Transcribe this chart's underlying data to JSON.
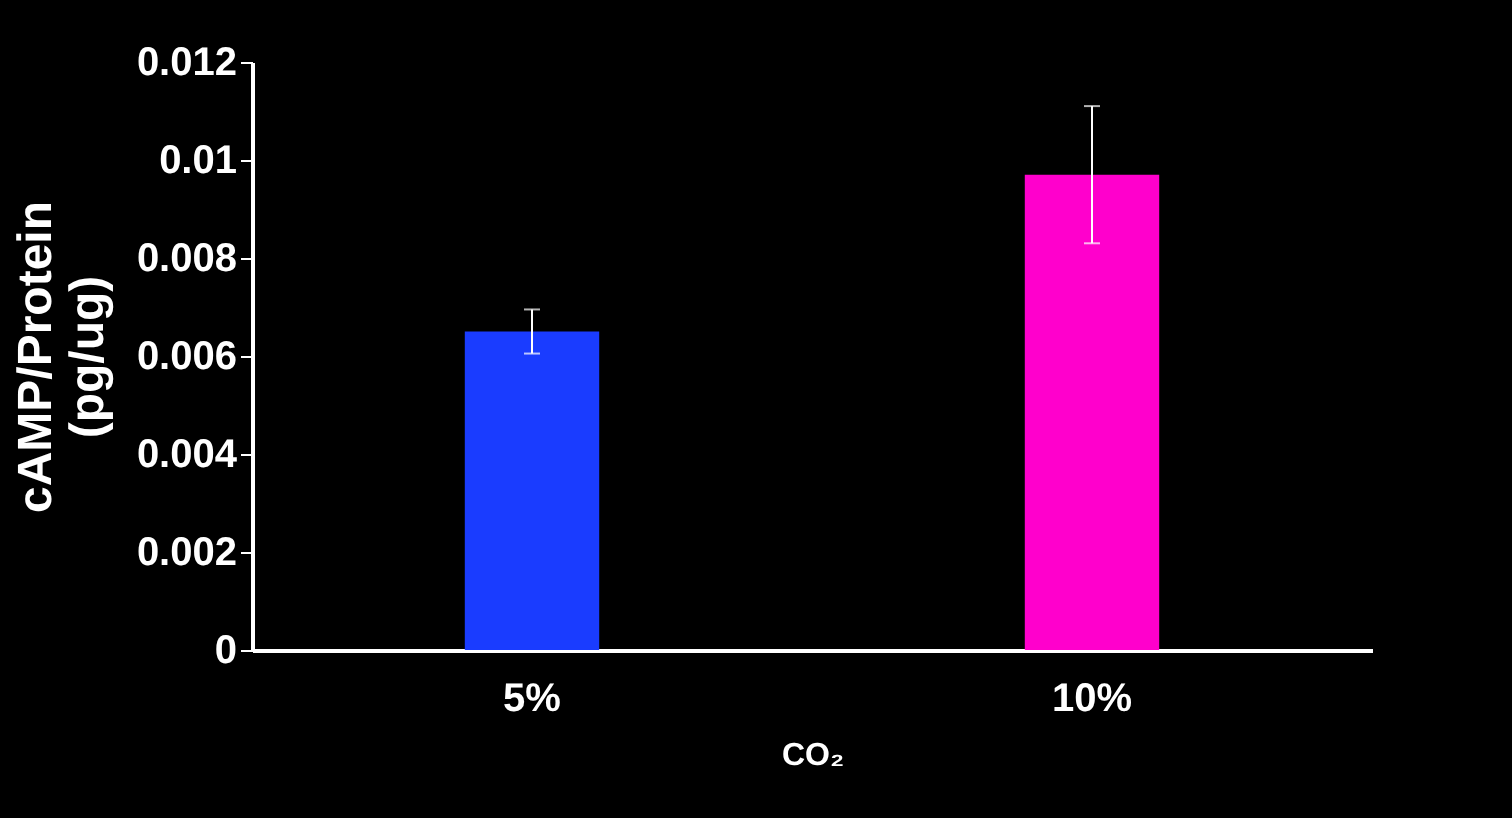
{
  "chart_data": {
    "type": "bar",
    "xlabel": "CO₂",
    "ylabel": "cAMP/Protein (pg/ug)",
    "categories": [
      "5%",
      "10%"
    ],
    "values": [
      0.0065,
      0.0097
    ],
    "colors": [
      "#1a3cff",
      "#ff00cc"
    ],
    "errors": [
      0.00045,
      0.0014
    ],
    "ylim": [
      0,
      0.012
    ],
    "yticks": [
      0,
      0.002,
      0.004,
      0.006,
      0.008,
      0.01,
      0.012
    ],
    "grid": false
  }
}
